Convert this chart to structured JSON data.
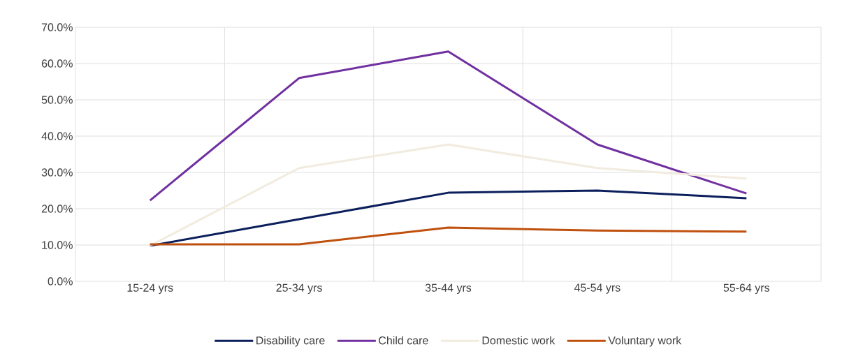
{
  "chart_data": {
    "type": "line",
    "categories": [
      "15-24 yrs",
      "25-34 yrs",
      "35-44 yrs",
      "45-54 yrs",
      "55-64 yrs"
    ],
    "series": [
      {
        "name": "Disability care",
        "color": "#0b1f5c",
        "values": [
          9.8,
          17.1,
          24.4,
          25.0,
          22.9
        ]
      },
      {
        "name": "Child care",
        "color": "#7030a0",
        "values": [
          22.3,
          56.0,
          63.3,
          37.7,
          24.2
        ]
      },
      {
        "name": "Domestic work",
        "color": "#f2ebdf",
        "values": [
          9.8,
          31.2,
          37.7,
          31.2,
          28.3
        ]
      },
      {
        "name": "Voluntary work",
        "color": "#c0500e",
        "values": [
          10.2,
          10.2,
          14.8,
          14.0,
          13.7
        ]
      }
    ],
    "ylim": [
      0,
      70
    ],
    "yticks": [
      {
        "value": 0,
        "label": "0.0%"
      },
      {
        "value": 10,
        "label": "10.0%"
      },
      {
        "value": 20,
        "label": "20.0%"
      },
      {
        "value": 30,
        "label": "30.0%"
      },
      {
        "value": 40,
        "label": "40.0%"
      },
      {
        "value": 50,
        "label": "50.0%"
      },
      {
        "value": 60,
        "label": "60.0%"
      },
      {
        "value": 70,
        "label": "70.0%"
      }
    ],
    "grid": true,
    "legend": "bottom",
    "marker": "none",
    "line_style": "solid"
  }
}
